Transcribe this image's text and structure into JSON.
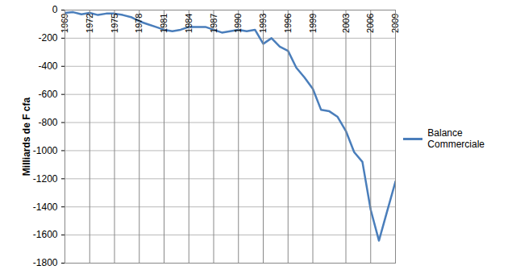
{
  "chart_data": {
    "type": "line",
    "y_label": "Milliards de F cfa",
    "x": [
      1969,
      1970,
      1971,
      1972,
      1973,
      1974,
      1975,
      1976,
      1977,
      1978,
      1979,
      1980,
      1981,
      1982,
      1983,
      1984,
      1985,
      1986,
      1987,
      1988,
      1989,
      1990,
      1991,
      1992,
      1993,
      1994,
      1995,
      1996,
      1997,
      1998,
      1999,
      2000,
      2001,
      2002,
      2003,
      2004,
      2005,
      2006,
      2007,
      2008,
      2009
    ],
    "series": [
      {
        "name": "Balance Commerciale",
        "color": "#4a7ebb",
        "values": [
          -20,
          -15,
          -30,
          -20,
          -35,
          -25,
          -25,
          -35,
          -50,
          -80,
          -100,
          -120,
          -140,
          -150,
          -140,
          -120,
          -120,
          -120,
          -140,
          -160,
          -150,
          -140,
          -150,
          -140,
          -240,
          -200,
          -260,
          -290,
          -410,
          -480,
          -560,
          -710,
          -720,
          -760,
          -860,
          -1010,
          -1080,
          -1420,
          -1640,
          -1430,
          -1220
        ]
      }
    ],
    "xlim": [
      1969,
      2009
    ],
    "xticks": [
      1969,
      1972,
      1975,
      1978,
      1981,
      1984,
      1987,
      1990,
      1993,
      1996,
      1999,
      2003,
      2006,
      2009
    ],
    "ylim": [
      -1800,
      0
    ],
    "yticks": [
      -1800,
      -1600,
      -1400,
      -1200,
      -1000,
      -800,
      -600,
      -400,
      -200,
      0
    ],
    "grid": true,
    "legend": "right"
  }
}
